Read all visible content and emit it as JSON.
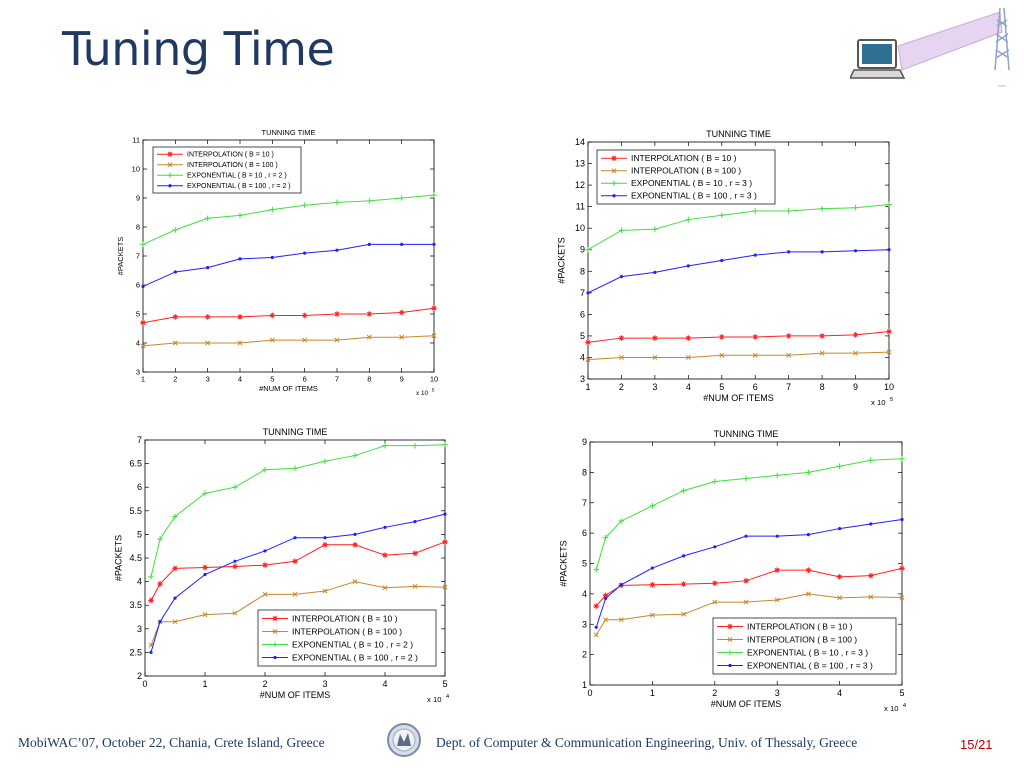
{
  "slide": {
    "title": "Tuning Time",
    "footer_left": "MobiWAC’07, October 22, Chania, Crete Island, Greece",
    "footer_center": "Dept. of Computer & Communication Engineering, Univ. of Thessaly, Greece",
    "page": "15/21",
    "logo_icon": "university-seal-icon",
    "header_icon": "laptop-radio-tower-icon"
  },
  "chart_data": [
    {
      "type": "line",
      "title": "TUNNING TIME",
      "xlabel": "#NUM OF ITEMS",
      "ylabel": "#PACKETS",
      "x_multiplier": "x 10",
      "x_multiplier_exp": "5",
      "xlim": [
        1,
        10
      ],
      "ylim": [
        3,
        11
      ],
      "xticks": [
        1,
        2,
        3,
        4,
        5,
        6,
        7,
        8,
        9,
        10
      ],
      "yticks": [
        3,
        4,
        5,
        6,
        7,
        8,
        9,
        10,
        11
      ],
      "grid": false,
      "legend_position": "top-left",
      "series": [
        {
          "name": "INTERPOLATION ( B = 10 )",
          "color": "#ff2020",
          "marker": "star",
          "x": [
            1,
            2,
            3,
            4,
            5,
            6,
            7,
            8,
            9,
            10
          ],
          "y": [
            4.7,
            4.9,
            4.9,
            4.9,
            4.95,
            4.95,
            5.0,
            5.0,
            5.05,
            5.2
          ]
        },
        {
          "name": "INTERPOLATION ( B = 100 )",
          "color": "#c8882a",
          "marker": "x",
          "x": [
            1,
            2,
            3,
            4,
            5,
            6,
            7,
            8,
            9,
            10
          ],
          "y": [
            3.9,
            4.0,
            4.0,
            4.0,
            4.1,
            4.1,
            4.1,
            4.2,
            4.2,
            4.25
          ]
        },
        {
          "name": "EXPONENTIAL ( B = 10  , r = 2 )",
          "color": "#40e040",
          "marker": "plus",
          "x": [
            1,
            2,
            3,
            4,
            5,
            6,
            7,
            8,
            9,
            10
          ],
          "y": [
            7.4,
            7.9,
            8.3,
            8.4,
            8.6,
            8.75,
            8.85,
            8.9,
            9.0,
            9.1
          ]
        },
        {
          "name": "EXPONENTIAL ( B = 100 , r = 2 )",
          "color": "#2020ff",
          "marker": "dot",
          "x": [
            1,
            2,
            3,
            4,
            5,
            6,
            7,
            8,
            9,
            10
          ],
          "y": [
            5.95,
            6.45,
            6.6,
            6.9,
            6.95,
            7.1,
            7.2,
            7.4,
            7.4,
            7.4
          ]
        }
      ]
    },
    {
      "type": "line",
      "title": "TUNNING TIME",
      "xlabel": "#NUM OF ITEMS",
      "ylabel": "#PACKETS",
      "x_multiplier": "x 10",
      "x_multiplier_exp": "5",
      "xlim": [
        1,
        10
      ],
      "ylim": [
        3,
        14
      ],
      "xticks": [
        1,
        2,
        3,
        4,
        5,
        6,
        7,
        8,
        9,
        10
      ],
      "yticks": [
        3,
        4,
        5,
        6,
        7,
        8,
        9,
        10,
        11,
        12,
        13,
        14
      ],
      "grid": false,
      "legend_position": "top-left",
      "series": [
        {
          "name": "INTERPOLATION ( B = 10 )",
          "color": "#ff2020",
          "marker": "star",
          "x": [
            1,
            2,
            3,
            4,
            5,
            6,
            7,
            8,
            9,
            10
          ],
          "y": [
            4.7,
            4.9,
            4.9,
            4.9,
            4.95,
            4.95,
            5.0,
            5.0,
            5.05,
            5.2
          ]
        },
        {
          "name": "INTERPOLATION ( B = 100 )",
          "color": "#c8882a",
          "marker": "x",
          "x": [
            1,
            2,
            3,
            4,
            5,
            6,
            7,
            8,
            9,
            10
          ],
          "y": [
            3.9,
            4.0,
            4.0,
            4.0,
            4.1,
            4.1,
            4.1,
            4.2,
            4.2,
            4.25
          ]
        },
        {
          "name": "EXPONENTIAL ( B = 10 , r = 3 )",
          "color": "#40e040",
          "marker": "plus",
          "x": [
            1,
            2,
            3,
            4,
            5,
            6,
            7,
            8,
            9,
            10
          ],
          "y": [
            9.0,
            9.9,
            9.95,
            10.4,
            10.6,
            10.8,
            10.8,
            10.9,
            10.95,
            11.1
          ]
        },
        {
          "name": "EXPONENTIAL ( B = 100 , r = 3 )",
          "color": "#2020ff",
          "marker": "dot",
          "x": [
            1,
            2,
            3,
            4,
            5,
            6,
            7,
            8,
            9,
            10
          ],
          "y": [
            7.0,
            7.75,
            7.95,
            8.25,
            8.5,
            8.75,
            8.9,
            8.9,
            8.95,
            9.0
          ]
        }
      ]
    },
    {
      "type": "line",
      "title": "TUNNING TIME",
      "xlabel": "#NUM OF ITEMS",
      "ylabel": "#PACKETS",
      "x_multiplier": "x 10",
      "x_multiplier_exp": "4",
      "xlim": [
        0,
        5
      ],
      "ylim": [
        2,
        7
      ],
      "xticks": [
        0,
        1,
        2,
        3,
        4,
        5
      ],
      "yticks": [
        2,
        2.5,
        3,
        3.5,
        4,
        4.5,
        5,
        5.5,
        6,
        6.5,
        7
      ],
      "grid": false,
      "legend_position": "bottom-right",
      "series": [
        {
          "name": "INTERPOLATION ( B = 10 )",
          "color": "#ff2020",
          "marker": "star",
          "x": [
            0.1,
            0.25,
            0.5,
            1,
            1.5,
            2,
            2.5,
            3,
            3.5,
            4,
            4.5,
            5
          ],
          "y": [
            3.6,
            3.95,
            4.28,
            4.3,
            4.32,
            4.35,
            4.43,
            4.78,
            4.78,
            4.56,
            4.6,
            4.84
          ]
        },
        {
          "name": "INTERPOLATION ( B = 100 )",
          "color": "#c8882a",
          "marker": "x",
          "x": [
            0.1,
            0.25,
            0.5,
            1,
            1.5,
            2,
            2.5,
            3,
            3.5,
            4,
            4.5,
            5
          ],
          "y": [
            2.65,
            3.15,
            3.15,
            3.3,
            3.33,
            3.73,
            3.73,
            3.8,
            4.0,
            3.87,
            3.9,
            3.88
          ]
        },
        {
          "name": "EXPONENTIAL ( B = 10 , r = 2 )",
          "color": "#40e040",
          "marker": "plus",
          "x": [
            0.1,
            0.25,
            0.5,
            1,
            1.5,
            2,
            2.5,
            3,
            3.5,
            4,
            4.5,
            5
          ],
          "y": [
            4.1,
            4.9,
            5.38,
            5.87,
            6.0,
            6.37,
            6.4,
            6.55,
            6.67,
            6.88,
            6.88,
            6.9
          ]
        },
        {
          "name": "EXPONENTIAL ( B = 100 , r = 2 )",
          "color": "#2020ff",
          "marker": "dot",
          "x": [
            0.1,
            0.25,
            0.5,
            1,
            1.5,
            2,
            2.5,
            3,
            3.5,
            4,
            4.5,
            5
          ],
          "y": [
            2.5,
            3.15,
            3.65,
            4.15,
            4.43,
            4.65,
            4.93,
            4.93,
            5.0,
            5.15,
            5.27,
            5.43
          ]
        }
      ]
    },
    {
      "type": "line",
      "title": "TUNNING TIME",
      "xlabel": "#NUM OF ITEMS",
      "ylabel": "#PACKETS",
      "x_multiplier": "x 10",
      "x_multiplier_exp": "4",
      "xlim": [
        0,
        5
      ],
      "ylim": [
        1,
        9
      ],
      "xticks": [
        0,
        1,
        2,
        3,
        4,
        5
      ],
      "yticks": [
        1,
        2,
        3,
        4,
        5,
        6,
        7,
        8,
        9
      ],
      "grid": false,
      "legend_position": "bottom-right",
      "series": [
        {
          "name": "INTERPOLATION ( B = 10 )",
          "color": "#ff2020",
          "marker": "star",
          "x": [
            0.1,
            0.25,
            0.5,
            1,
            1.5,
            2,
            2.5,
            3,
            3.5,
            4,
            4.5,
            5
          ],
          "y": [
            3.6,
            3.95,
            4.28,
            4.3,
            4.32,
            4.35,
            4.43,
            4.78,
            4.78,
            4.56,
            4.6,
            4.84
          ]
        },
        {
          "name": "INTERPOLATION ( B = 100 )",
          "color": "#c8882a",
          "marker": "x",
          "x": [
            0.1,
            0.25,
            0.5,
            1,
            1.5,
            2,
            2.5,
            3,
            3.5,
            4,
            4.5,
            5
          ],
          "y": [
            2.65,
            3.15,
            3.15,
            3.3,
            3.33,
            3.73,
            3.73,
            3.8,
            4.0,
            3.87,
            3.9,
            3.88
          ]
        },
        {
          "name": "EXPONENTIAL ( B = 10 , r = 3 )",
          "color": "#40e040",
          "marker": "plus",
          "x": [
            0.1,
            0.25,
            0.5,
            1,
            1.5,
            2,
            2.5,
            3,
            3.5,
            4,
            4.5,
            5
          ],
          "y": [
            4.8,
            5.85,
            6.4,
            6.9,
            7.4,
            7.7,
            7.8,
            7.9,
            8.0,
            8.2,
            8.4,
            8.45
          ]
        },
        {
          "name": "EXPONENTIAL ( B = 100 , r = 3 )",
          "color": "#2020ff",
          "marker": "dot",
          "x": [
            0.1,
            0.25,
            0.5,
            1,
            1.5,
            2,
            2.5,
            3,
            3.5,
            4,
            4.5,
            5
          ],
          "y": [
            2.9,
            3.85,
            4.3,
            4.85,
            5.25,
            5.55,
            5.9,
            5.9,
            5.95,
            6.15,
            6.3,
            6.45
          ]
        }
      ]
    }
  ]
}
